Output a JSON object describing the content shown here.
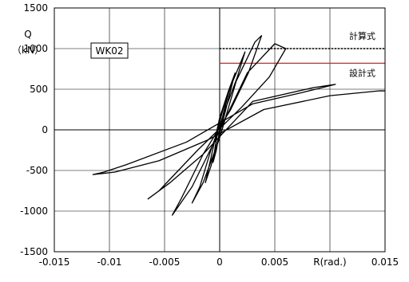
{
  "chart_data": {
    "type": "line",
    "title": "",
    "xlabel": "R(rad.)",
    "ylabel": [
      "Q",
      "（kN）"
    ],
    "xlim": [
      -0.015,
      0.015
    ],
    "ylim": [
      -1500,
      1500
    ],
    "x_ticks": [
      {
        "value": -0.015,
        "label": "-0.015"
      },
      {
        "value": -0.01,
        "label": "-0.01"
      },
      {
        "value": -0.005,
        "label": "-0.005"
      },
      {
        "value": 0,
        "label": "0"
      },
      {
        "value": 0.005,
        "label": "0.005"
      },
      {
        "value": 0.01,
        "label": "R(rad.)"
      },
      {
        "value": 0.015,
        "label": "0.015"
      }
    ],
    "y_ticks": [
      {
        "value": 1500,
        "label": "1500"
      },
      {
        "value": 1000,
        "label": "1000"
      },
      {
        "value": 500,
        "label": "500"
      },
      {
        "value": 0,
        "label": "0"
      },
      {
        "value": -500,
        "label": "-500"
      },
      {
        "value": -1000,
        "label": "-1000"
      },
      {
        "value": -1500,
        "label": "-1500"
      }
    ],
    "grid": true,
    "specimen_label": "WK02",
    "reference_lines": [
      {
        "label": "計算式",
        "y": 1000,
        "x_start": 0,
        "style": "dotted",
        "color": "#000000"
      },
      {
        "label": "設計式",
        "y": 820,
        "x_start": 0,
        "style": "solid",
        "color": "#e02020"
      }
    ],
    "series": [
      {
        "color": "#000000",
        "points": [
          [
            0,
            0
          ],
          [
            0.0005,
            300
          ],
          [
            0.0009,
            500
          ],
          [
            0.0005,
            350
          ],
          [
            0,
            100
          ],
          [
            -0.0004,
            -200
          ],
          [
            -0.0006,
            -400
          ],
          [
            -0.0003,
            -250
          ],
          [
            0,
            0
          ],
          [
            0.0008,
            450
          ],
          [
            0.0014,
            700
          ],
          [
            0.0008,
            480
          ],
          [
            0,
            150
          ],
          [
            -0.0008,
            -350
          ],
          [
            -0.0013,
            -650
          ],
          [
            -0.0008,
            -450
          ],
          [
            0,
            -50
          ],
          [
            0.0012,
            600
          ],
          [
            0.0023,
            960
          ],
          [
            0.0016,
            650
          ],
          [
            0.0005,
            250
          ],
          [
            -0.0008,
            -250
          ],
          [
            -0.0018,
            -700
          ],
          [
            -0.0025,
            -900
          ],
          [
            -0.0015,
            -650
          ],
          [
            0,
            -100
          ],
          [
            0.0015,
            600
          ],
          [
            0.0032,
            1080
          ],
          [
            0.0038,
            1160
          ],
          [
            0.0026,
            700
          ],
          [
            0.001,
            250
          ],
          [
            -0.0015,
            -300
          ],
          [
            -0.0035,
            -850
          ],
          [
            -0.0043,
            -1050
          ],
          [
            -0.0025,
            -700
          ],
          [
            -0.0005,
            -150
          ],
          [
            0.0025,
            700
          ],
          [
            0.005,
            1060
          ],
          [
            0.006,
            1000
          ],
          [
            0.0045,
            650
          ],
          [
            0.002,
            280
          ],
          [
            -0.002,
            -250
          ],
          [
            -0.0055,
            -750
          ],
          [
            -0.0065,
            -850
          ],
          [
            -0.0045,
            -650
          ],
          [
            -0.0015,
            -300
          ],
          [
            0.003,
            350
          ],
          [
            0.0085,
            520
          ],
          [
            0.0105,
            560
          ],
          [
            0.0075,
            460
          ],
          [
            0.003,
            320
          ],
          [
            -0.003,
            -150
          ],
          [
            -0.0085,
            -430
          ],
          [
            -0.0105,
            -520
          ],
          [
            -0.0115,
            -550
          ],
          [
            -0.0095,
            -520
          ],
          [
            -0.0055,
            -380
          ],
          [
            -0.001,
            -120
          ],
          [
            0.004,
            250
          ],
          [
            0.01,
            420
          ],
          [
            0.0145,
            480
          ],
          [
            0.015,
            480
          ]
        ]
      }
    ]
  }
}
